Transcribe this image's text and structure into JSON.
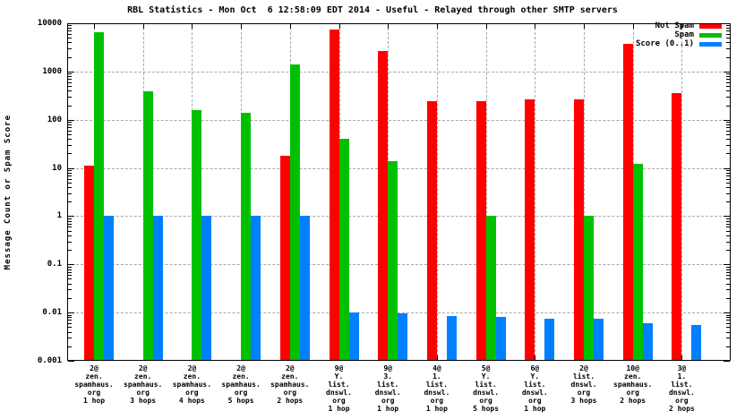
{
  "title": "RBL Statistics - Mon Oct  6 12:58:09 EDT 2014 - Useful - Relayed through other SMTP servers",
  "ylabel": "Message Count or Spam Score",
  "legend": {
    "items": [
      {
        "label": "Not Spam",
        "color": "#ff0000"
      },
      {
        "label": "Spam",
        "color": "#00c000"
      },
      {
        "label": "Score (0..1)",
        "color": "#0080ff"
      }
    ]
  },
  "chart_data": {
    "type": "bar",
    "y_scale": "log",
    "ylim": [
      0.001,
      10000
    ],
    "y_tick_labels": [
      "10000",
      "1000",
      "100",
      "10",
      "1",
      "0.1",
      "0.01",
      "0.001"
    ],
    "y_tick_values": [
      10000,
      1000,
      100,
      10,
      1,
      0.1,
      0.01,
      0.001
    ],
    "grid": true,
    "legend_position": "top-right",
    "categories": [
      [
        "2@",
        "zen.",
        "spamhaus.",
        "org",
        "1 hop"
      ],
      [
        "2@",
        "zen.",
        "spamhaus.",
        "org",
        "3 hops"
      ],
      [
        "2@",
        "zen.",
        "spamhaus.",
        "org",
        "4 hops"
      ],
      [
        "2@",
        "zen.",
        "spamhaus.",
        "org",
        "5 hops"
      ],
      [
        "2@",
        "zen.",
        "spamhaus.",
        "org",
        "2 hops"
      ],
      [
        "9@",
        "Y.",
        "list.",
        "dnswl.",
        "org",
        "1 hop"
      ],
      [
        "9@",
        "3.",
        "list.",
        "dnswl.",
        "org",
        "1 hop"
      ],
      [
        "4@",
        "1.",
        "list.",
        "dnswl.",
        "org",
        "1 hop"
      ],
      [
        "5@",
        "Y.",
        "list.",
        "dnswl.",
        "org",
        "5 hops"
      ],
      [
        "6@",
        "Y.",
        "list.",
        "dnswl.",
        "org",
        "1 hop"
      ],
      [
        "2@",
        "list.",
        "dnswl.",
        "org",
        "3 hops"
      ],
      [
        "10@",
        "zen.",
        "spamhaus.",
        "org",
        "2 hops"
      ],
      [
        "3@",
        "1.",
        "list.",
        "dnswl.",
        "org",
        "2 hops"
      ]
    ],
    "series": [
      {
        "name": "Not Spam",
        "color": "#ff0000",
        "values": [
          11,
          null,
          null,
          null,
          18,
          7500,
          2700,
          240,
          240,
          260,
          260,
          3700,
          360
        ]
      },
      {
        "name": "Spam",
        "color": "#00c000",
        "values": [
          6500,
          390,
          155,
          140,
          1400,
          40,
          14,
          null,
          1,
          null,
          1,
          12,
          null
        ]
      },
      {
        "name": "Score (0..1)",
        "color": "#0080ff",
        "values": [
          1,
          1,
          1,
          1,
          1,
          0.01,
          0.0095,
          0.0085,
          0.008,
          0.0075,
          0.0075,
          0.006,
          0.0055
        ]
      }
    ]
  }
}
